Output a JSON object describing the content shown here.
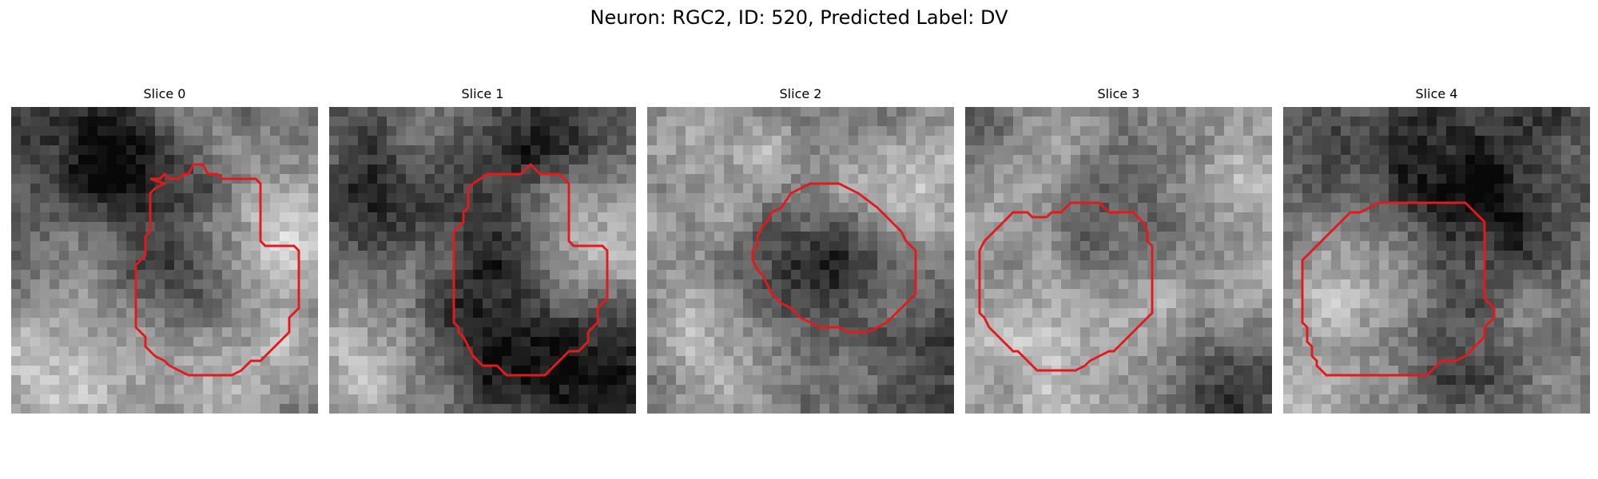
{
  "figure": {
    "title": "Neuron: RGC2, ID: 520, Predicted Label: DV"
  },
  "panels": [
    {
      "title": "Slice 0"
    },
    {
      "title": "Slice 1"
    },
    {
      "title": "Slice 2"
    },
    {
      "title": "Slice 3"
    },
    {
      "title": "Slice 4"
    }
  ],
  "colors": {
    "contour": "#e31a1c",
    "colormap": "grayscale"
  }
}
